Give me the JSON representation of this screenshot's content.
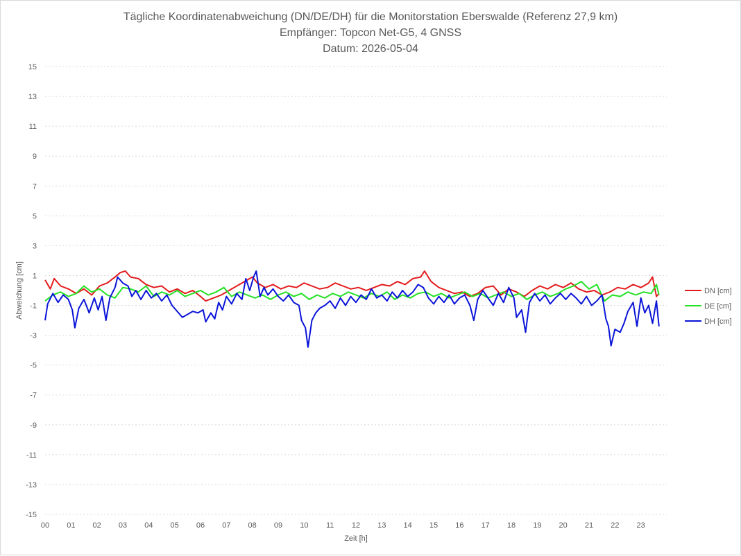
{
  "chart_data": {
    "type": "line",
    "title": [
      "Tägliche Koordinatenabweichung (DN/DE/DH) für die Monitorstation Eberswalde (Referenz 27,9 km)",
      "Empfänger: Topcon Net-G5, 4 GNSS",
      "Datum: 2026-05-04"
    ],
    "xlabel": "Zeit [h]",
    "ylabel": "Abweichung [cm]",
    "xlim": [
      0,
      24
    ],
    "ylim": [
      -15,
      15
    ],
    "x_ticks": [
      "00",
      "01",
      "02",
      "03",
      "04",
      "05",
      "06",
      "07",
      "08",
      "09",
      "10",
      "11",
      "12",
      "13",
      "14",
      "15",
      "16",
      "17",
      "18",
      "19",
      "20",
      "21",
      "22",
      "23"
    ],
    "y_ticks": [
      15,
      13,
      11,
      9,
      7,
      5,
      3,
      1,
      -1,
      -3,
      -5,
      -7,
      -9,
      -11,
      -13,
      -15
    ],
    "grid": "horizontal-dotted",
    "legend": "right",
    "series": [
      {
        "name": "DN [cm]",
        "color": "#e31a1c",
        "points": [
          [
            0,
            0.7
          ],
          [
            0.2,
            0.1
          ],
          [
            0.35,
            0.8
          ],
          [
            0.6,
            0.3
          ],
          [
            0.9,
            0.1
          ],
          [
            1.2,
            -0.2
          ],
          [
            1.5,
            0.1
          ],
          [
            1.8,
            -0.3
          ],
          [
            2.1,
            0.3
          ],
          [
            2.4,
            0.5
          ],
          [
            2.7,
            0.9
          ],
          [
            2.9,
            1.2
          ],
          [
            3.1,
            1.3
          ],
          [
            3.3,
            0.9
          ],
          [
            3.6,
            0.8
          ],
          [
            3.9,
            0.4
          ],
          [
            4.2,
            0.2
          ],
          [
            4.5,
            0.3
          ],
          [
            4.8,
            -0.1
          ],
          [
            5.1,
            0.1
          ],
          [
            5.4,
            -0.2
          ],
          [
            5.7,
            0.0
          ],
          [
            6.0,
            -0.4
          ],
          [
            6.2,
            -0.7
          ],
          [
            6.5,
            -0.5
          ],
          [
            6.8,
            -0.3
          ],
          [
            7.1,
            0.0
          ],
          [
            7.4,
            0.3
          ],
          [
            7.7,
            0.6
          ],
          [
            8.0,
            0.9
          ],
          [
            8.2,
            0.5
          ],
          [
            8.5,
            0.2
          ],
          [
            8.8,
            0.4
          ],
          [
            9.1,
            0.1
          ],
          [
            9.4,
            0.3
          ],
          [
            9.7,
            0.2
          ],
          [
            10.0,
            0.5
          ],
          [
            10.3,
            0.3
          ],
          [
            10.6,
            0.1
          ],
          [
            10.9,
            0.2
          ],
          [
            11.2,
            0.5
          ],
          [
            11.5,
            0.3
          ],
          [
            11.8,
            0.1
          ],
          [
            12.1,
            0.2
          ],
          [
            12.4,
            0.0
          ],
          [
            12.7,
            0.2
          ],
          [
            13.0,
            0.4
          ],
          [
            13.3,
            0.3
          ],
          [
            13.6,
            0.6
          ],
          [
            13.9,
            0.4
          ],
          [
            14.2,
            0.8
          ],
          [
            14.5,
            0.9
          ],
          [
            14.65,
            1.3
          ],
          [
            14.9,
            0.6
          ],
          [
            15.2,
            0.2
          ],
          [
            15.5,
            0.0
          ],
          [
            15.8,
            -0.2
          ],
          [
            16.1,
            -0.1
          ],
          [
            16.4,
            -0.4
          ],
          [
            16.7,
            -0.2
          ],
          [
            17.0,
            0.2
          ],
          [
            17.3,
            0.3
          ],
          [
            17.6,
            -0.3
          ],
          [
            17.9,
            0.1
          ],
          [
            18.2,
            -0.1
          ],
          [
            18.5,
            -0.4
          ],
          [
            18.8,
            0.0
          ],
          [
            19.1,
            0.3
          ],
          [
            19.4,
            0.1
          ],
          [
            19.7,
            0.4
          ],
          [
            20.0,
            0.2
          ],
          [
            20.3,
            0.5
          ],
          [
            20.6,
            0.1
          ],
          [
            20.9,
            -0.1
          ],
          [
            21.2,
            0.0
          ],
          [
            21.5,
            -0.3
          ],
          [
            21.8,
            -0.1
          ],
          [
            22.1,
            0.2
          ],
          [
            22.4,
            0.1
          ],
          [
            22.7,
            0.4
          ],
          [
            23.0,
            0.2
          ],
          [
            23.3,
            0.5
          ],
          [
            23.45,
            0.9
          ],
          [
            23.6,
            -0.4
          ],
          [
            23.7,
            -0.2
          ]
        ]
      },
      {
        "name": "DE [cm]",
        "color": "#22e022",
        "points": [
          [
            0,
            -0.7
          ],
          [
            0.3,
            -0.3
          ],
          [
            0.6,
            -0.1
          ],
          [
            0.9,
            -0.4
          ],
          [
            1.2,
            -0.2
          ],
          [
            1.5,
            0.3
          ],
          [
            1.8,
            -0.1
          ],
          [
            2.1,
            0.1
          ],
          [
            2.4,
            -0.3
          ],
          [
            2.7,
            -0.5
          ],
          [
            3.0,
            0.2
          ],
          [
            3.3,
            0.1
          ],
          [
            3.6,
            -0.1
          ],
          [
            3.9,
            0.3
          ],
          [
            4.2,
            -0.4
          ],
          [
            4.5,
            -0.1
          ],
          [
            4.8,
            -0.3
          ],
          [
            5.1,
            0.0
          ],
          [
            5.4,
            -0.4
          ],
          [
            5.7,
            -0.2
          ],
          [
            6.0,
            0.0
          ],
          [
            6.3,
            -0.3
          ],
          [
            6.6,
            -0.1
          ],
          [
            6.9,
            0.2
          ],
          [
            7.2,
            -0.4
          ],
          [
            7.5,
            -0.1
          ],
          [
            7.8,
            -0.3
          ],
          [
            8.1,
            -0.5
          ],
          [
            8.4,
            -0.3
          ],
          [
            8.7,
            -0.6
          ],
          [
            9.0,
            -0.3
          ],
          [
            9.3,
            -0.1
          ],
          [
            9.6,
            -0.4
          ],
          [
            9.9,
            -0.2
          ],
          [
            10.2,
            -0.6
          ],
          [
            10.5,
            -0.3
          ],
          [
            10.8,
            -0.5
          ],
          [
            11.1,
            -0.2
          ],
          [
            11.4,
            -0.4
          ],
          [
            11.7,
            -0.1
          ],
          [
            12.0,
            -0.3
          ],
          [
            12.3,
            -0.5
          ],
          [
            12.6,
            -0.2
          ],
          [
            12.9,
            -0.4
          ],
          [
            13.2,
            -0.1
          ],
          [
            13.5,
            -0.6
          ],
          [
            13.8,
            -0.3
          ],
          [
            14.1,
            -0.5
          ],
          [
            14.4,
            -0.2
          ],
          [
            14.7,
            -0.1
          ],
          [
            15.0,
            -0.4
          ],
          [
            15.3,
            -0.2
          ],
          [
            15.6,
            -0.5
          ],
          [
            15.9,
            -0.3
          ],
          [
            16.2,
            -0.1
          ],
          [
            16.5,
            -0.4
          ],
          [
            16.8,
            -0.2
          ],
          [
            17.1,
            -0.5
          ],
          [
            17.4,
            -0.3
          ],
          [
            17.7,
            -0.1
          ],
          [
            18.0,
            -0.4
          ],
          [
            18.3,
            -0.2
          ],
          [
            18.6,
            -0.6
          ],
          [
            18.9,
            -0.3
          ],
          [
            19.2,
            -0.1
          ],
          [
            19.5,
            -0.4
          ],
          [
            19.8,
            -0.2
          ],
          [
            20.1,
            0.1
          ],
          [
            20.4,
            0.3
          ],
          [
            20.7,
            0.6
          ],
          [
            21.0,
            0.1
          ],
          [
            21.3,
            0.4
          ],
          [
            21.6,
            -0.7
          ],
          [
            21.9,
            -0.3
          ],
          [
            22.2,
            -0.4
          ],
          [
            22.5,
            -0.1
          ],
          [
            22.8,
            -0.3
          ],
          [
            23.1,
            -0.1
          ],
          [
            23.4,
            -0.2
          ],
          [
            23.6,
            0.4
          ],
          [
            23.7,
            -0.3
          ]
        ]
      },
      {
        "name": "DH [cm]",
        "color": "#0a14d8",
        "points": [
          [
            0,
            -2.0
          ],
          [
            0.1,
            -0.9
          ],
          [
            0.3,
            -0.2
          ],
          [
            0.5,
            -0.8
          ],
          [
            0.7,
            -0.3
          ],
          [
            0.9,
            -0.6
          ],
          [
            1.05,
            -1.3
          ],
          [
            1.15,
            -2.5
          ],
          [
            1.3,
            -1.2
          ],
          [
            1.5,
            -0.6
          ],
          [
            1.7,
            -1.5
          ],
          [
            1.9,
            -0.5
          ],
          [
            2.05,
            -1.3
          ],
          [
            2.2,
            -0.4
          ],
          [
            2.35,
            -2.0
          ],
          [
            2.5,
            -0.5
          ],
          [
            2.7,
            0.2
          ],
          [
            2.8,
            0.9
          ],
          [
            3.0,
            0.5
          ],
          [
            3.2,
            0.3
          ],
          [
            3.35,
            -0.4
          ],
          [
            3.5,
            0.0
          ],
          [
            3.7,
            -0.6
          ],
          [
            3.9,
            0.0
          ],
          [
            4.1,
            -0.5
          ],
          [
            4.3,
            -0.2
          ],
          [
            4.5,
            -0.7
          ],
          [
            4.7,
            -0.3
          ],
          [
            4.9,
            -1.0
          ],
          [
            5.1,
            -1.4
          ],
          [
            5.3,
            -1.8
          ],
          [
            5.5,
            -1.6
          ],
          [
            5.7,
            -1.4
          ],
          [
            5.9,
            -1.5
          ],
          [
            6.1,
            -1.3
          ],
          [
            6.2,
            -2.1
          ],
          [
            6.4,
            -1.5
          ],
          [
            6.55,
            -1.9
          ],
          [
            6.7,
            -0.8
          ],
          [
            6.85,
            -1.3
          ],
          [
            7.0,
            -0.4
          ],
          [
            7.2,
            -0.9
          ],
          [
            7.4,
            -0.2
          ],
          [
            7.6,
            -0.6
          ],
          [
            7.75,
            0.8
          ],
          [
            7.9,
            0.0
          ],
          [
            8.05,
            0.9
          ],
          [
            8.15,
            1.3
          ],
          [
            8.3,
            -0.4
          ],
          [
            8.45,
            0.2
          ],
          [
            8.6,
            -0.3
          ],
          [
            8.8,
            0.1
          ],
          [
            9.0,
            -0.4
          ],
          [
            9.2,
            -0.7
          ],
          [
            9.4,
            -0.3
          ],
          [
            9.6,
            -0.8
          ],
          [
            9.8,
            -1.0
          ],
          [
            9.9,
            -2.0
          ],
          [
            10.05,
            -2.5
          ],
          [
            10.15,
            -3.8
          ],
          [
            10.3,
            -2.0
          ],
          [
            10.45,
            -1.5
          ],
          [
            10.6,
            -1.2
          ],
          [
            10.8,
            -1.0
          ],
          [
            11.0,
            -0.7
          ],
          [
            11.2,
            -1.2
          ],
          [
            11.4,
            -0.5
          ],
          [
            11.6,
            -1.0
          ],
          [
            11.8,
            -0.4
          ],
          [
            12.0,
            -0.8
          ],
          [
            12.2,
            -0.3
          ],
          [
            12.4,
            -0.6
          ],
          [
            12.6,
            0.1
          ],
          [
            12.8,
            -0.5
          ],
          [
            13.0,
            -0.3
          ],
          [
            13.2,
            -0.7
          ],
          [
            13.4,
            -0.1
          ],
          [
            13.6,
            -0.5
          ],
          [
            13.8,
            0.0
          ],
          [
            14.0,
            -0.4
          ],
          [
            14.2,
            -0.1
          ],
          [
            14.4,
            0.4
          ],
          [
            14.6,
            0.2
          ],
          [
            14.8,
            -0.5
          ],
          [
            15.0,
            -0.9
          ],
          [
            15.2,
            -0.4
          ],
          [
            15.4,
            -0.8
          ],
          [
            15.6,
            -0.3
          ],
          [
            15.8,
            -0.9
          ],
          [
            16.0,
            -0.5
          ],
          [
            16.2,
            -0.3
          ],
          [
            16.4,
            -1.0
          ],
          [
            16.55,
            -2.0
          ],
          [
            16.7,
            -0.6
          ],
          [
            16.9,
            0.0
          ],
          [
            17.1,
            -0.5
          ],
          [
            17.3,
            -1.0
          ],
          [
            17.5,
            -0.2
          ],
          [
            17.7,
            -0.8
          ],
          [
            17.9,
            0.2
          ],
          [
            18.1,
            -0.5
          ],
          [
            18.2,
            -1.8
          ],
          [
            18.4,
            -1.3
          ],
          [
            18.55,
            -2.8
          ],
          [
            18.7,
            -0.8
          ],
          [
            18.9,
            -0.2
          ],
          [
            19.1,
            -0.7
          ],
          [
            19.3,
            -0.3
          ],
          [
            19.5,
            -0.9
          ],
          [
            19.7,
            -0.5
          ],
          [
            19.9,
            -0.2
          ],
          [
            20.1,
            -0.6
          ],
          [
            20.3,
            -0.2
          ],
          [
            20.5,
            -0.5
          ],
          [
            20.7,
            -0.9
          ],
          [
            20.9,
            -0.4
          ],
          [
            21.1,
            -1.0
          ],
          [
            21.3,
            -0.7
          ],
          [
            21.5,
            -0.3
          ],
          [
            21.65,
            -1.9
          ],
          [
            21.75,
            -2.4
          ],
          [
            21.85,
            -3.7
          ],
          [
            22.0,
            -2.6
          ],
          [
            22.2,
            -2.8
          ],
          [
            22.35,
            -2.2
          ],
          [
            22.5,
            -1.4
          ],
          [
            22.7,
            -0.8
          ],
          [
            22.85,
            -2.4
          ],
          [
            23.0,
            -0.5
          ],
          [
            23.15,
            -1.5
          ],
          [
            23.3,
            -1.0
          ],
          [
            23.45,
            -2.2
          ],
          [
            23.6,
            -0.7
          ],
          [
            23.7,
            -2.4
          ]
        ]
      }
    ]
  }
}
